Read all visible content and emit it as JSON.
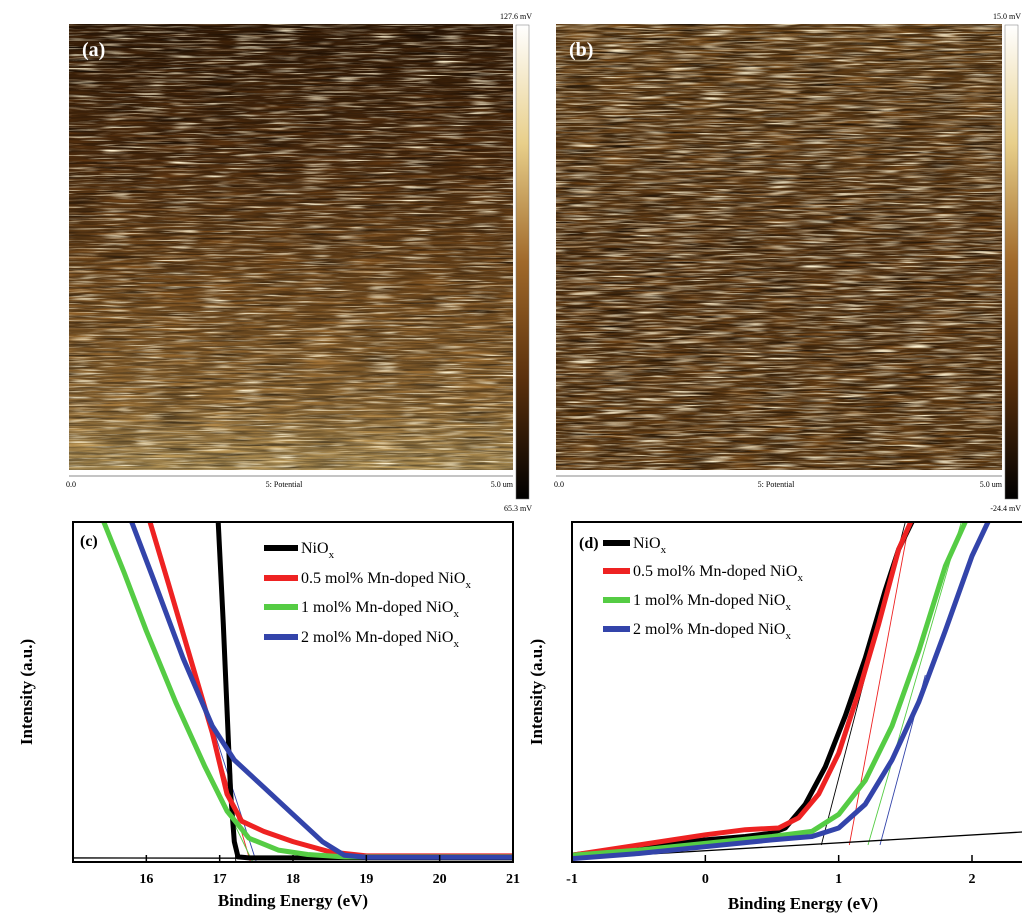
{
  "panels": {
    "a": {
      "label": "(a)",
      "scale_max": "127.6 mV",
      "scale_min": "65.3 mV",
      "x_start": "0.0",
      "x_end": "5.0 um",
      "channel": "5: Potential"
    },
    "b": {
      "label": "(b)",
      "scale_max": "15.0 mV",
      "scale_min": "-24.4 mV",
      "x_start": "0.0",
      "x_end": "5.0 um",
      "channel": "5: Potential"
    }
  },
  "colors": {
    "NiOx": "#000000",
    "mn05": "#ee2222",
    "mn1": "#55cc44",
    "mn2": "#3344aa",
    "afm_dark": "#2a1606",
    "afm_mid": "#7a4a18",
    "afm_light": "#e8cf8a"
  },
  "chart_data": [
    {
      "panel": "(c)",
      "type": "line",
      "xlabel": "Binding Energy (eV)",
      "ylabel": "Intensity (a.u.)",
      "xlim": [
        15.0,
        21.0
      ],
      "xticks": [
        "16",
        "17",
        "18",
        "19",
        "20",
        "21"
      ],
      "xtick_values": [
        16,
        17,
        18,
        19,
        20,
        21
      ],
      "series": [
        {
          "name": "NiOx",
          "key": "NiOx",
          "x": [
            16.98,
            17.05,
            17.1,
            17.15,
            17.2,
            17.25,
            17.4,
            18.0,
            19.0,
            21.0
          ],
          "y": [
            1.0,
            0.7,
            0.45,
            0.2,
            0.06,
            0.015,
            0.012,
            0.012,
            0.012,
            0.012
          ]
        },
        {
          "name": "0.5 mol% Mn-doped NiOx",
          "key": "mn05",
          "x": [
            16.05,
            16.3,
            16.6,
            16.9,
            17.1,
            17.3,
            17.6,
            18.0,
            18.5,
            19.0,
            21.0
          ],
          "y": [
            1.0,
            0.82,
            0.6,
            0.38,
            0.2,
            0.12,
            0.09,
            0.06,
            0.03,
            0.018,
            0.018
          ]
        },
        {
          "name": "1 mol% Mn-doped NiOx",
          "key": "mn1",
          "x": [
            15.42,
            15.7,
            16.0,
            16.4,
            16.8,
            17.1,
            17.4,
            17.8,
            18.2,
            18.7,
            21.0
          ],
          "y": [
            1.0,
            0.85,
            0.68,
            0.47,
            0.28,
            0.15,
            0.07,
            0.035,
            0.022,
            0.015,
            0.015
          ]
        },
        {
          "name": "2 mol% Mn-doped NiOx",
          "key": "mn2",
          "x": [
            15.8,
            16.1,
            16.5,
            16.9,
            17.2,
            17.6,
            18.0,
            18.4,
            18.7,
            19.0,
            21.0
          ],
          "y": [
            1.0,
            0.83,
            0.6,
            0.4,
            0.3,
            0.22,
            0.14,
            0.06,
            0.02,
            0.014,
            0.014
          ]
        }
      ],
      "fit_lines": [
        {
          "key": "NiOx",
          "x": [
            17.0,
            17.22
          ],
          "y": [
            1.0,
            0.0
          ]
        },
        {
          "key": "mn05",
          "x": [
            16.6,
            17.42
          ],
          "y": [
            0.6,
            0.0
          ]
        },
        {
          "key": "mn1",
          "x": [
            16.4,
            17.45
          ],
          "y": [
            0.47,
            0.0
          ]
        },
        {
          "key": "mn2",
          "x": [
            16.9,
            17.5
          ],
          "y": [
            0.4,
            0.0
          ]
        },
        {
          "key": "NiOx",
          "x": [
            15.0,
            21.0
          ],
          "y": [
            0.012,
            0.01
          ]
        }
      ],
      "legend": "top-right",
      "grid": false
    },
    {
      "panel": "(d)",
      "type": "line",
      "xlabel": "Binding Energy (eV)",
      "ylabel": "Intensity (a.u.)",
      "xlim": [
        -1.0,
        2.45
      ],
      "xticks": [
        "-1",
        "0",
        "1",
        "2"
      ],
      "xtick_values": [
        -1,
        0,
        1,
        2
      ],
      "series": [
        {
          "name": "NiOx",
          "key": "NiOx",
          "x": [
            -1.0,
            -0.5,
            0.0,
            0.3,
            0.5,
            0.6,
            0.75,
            0.9,
            1.05,
            1.2,
            1.35,
            1.45,
            1.55
          ],
          "y": [
            0.02,
            0.045,
            0.065,
            0.075,
            0.085,
            0.1,
            0.17,
            0.28,
            0.43,
            0.6,
            0.8,
            0.92,
            1.0
          ]
        },
        {
          "name": "0.5 mol% Mn-doped NiOx",
          "key": "mn05",
          "x": [
            -1.0,
            -0.5,
            0.0,
            0.3,
            0.55,
            0.7,
            0.85,
            1.0,
            1.15,
            1.3,
            1.45,
            1.54
          ],
          "y": [
            0.02,
            0.05,
            0.08,
            0.095,
            0.1,
            0.13,
            0.2,
            0.32,
            0.5,
            0.7,
            0.92,
            1.0
          ]
        },
        {
          "name": "1 mol% Mn-doped NiOx",
          "key": "mn1",
          "x": [
            -1.0,
            -0.5,
            0.0,
            0.5,
            0.8,
            1.0,
            1.2,
            1.4,
            1.6,
            1.8,
            1.95
          ],
          "y": [
            0.02,
            0.035,
            0.055,
            0.075,
            0.09,
            0.14,
            0.24,
            0.4,
            0.62,
            0.87,
            1.0
          ]
        },
        {
          "name": "2 mol% Mn-doped NiOx",
          "key": "mn2",
          "x": [
            -1.0,
            -0.5,
            0.0,
            0.5,
            0.8,
            1.0,
            1.2,
            1.4,
            1.6,
            1.8,
            2.0,
            2.12
          ],
          "y": [
            0.01,
            0.025,
            0.045,
            0.065,
            0.075,
            0.1,
            0.17,
            0.3,
            0.47,
            0.68,
            0.9,
            1.0
          ]
        }
      ],
      "fit_lines": [
        {
          "key": "NiOx",
          "x": [
            0.87,
            1.5
          ],
          "y": [
            0.05,
            1.0
          ]
        },
        {
          "key": "mn05",
          "x": [
            1.08,
            1.53
          ],
          "y": [
            0.05,
            1.0
          ]
        },
        {
          "key": "mn1",
          "x": [
            1.22,
            1.92
          ],
          "y": [
            0.05,
            1.0
          ]
        },
        {
          "key": "mn2",
          "x": [
            1.31,
            1.65
          ],
          "y": [
            0.05,
            0.55
          ]
        },
        {
          "key": "NiOx",
          "x": [
            -1.0,
            2.45
          ],
          "y": [
            0.01,
            0.09
          ]
        }
      ],
      "legend": "top-left",
      "grid": false
    }
  ]
}
